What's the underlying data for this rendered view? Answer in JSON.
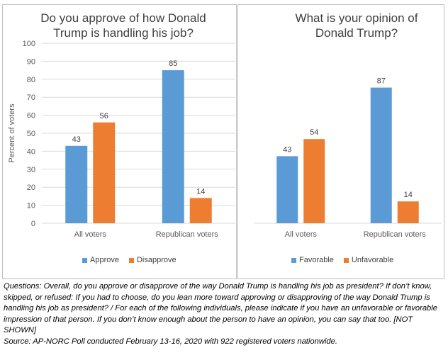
{
  "chart_data": [
    {
      "type": "bar",
      "title": "Do you approve of how Donald Trump is handling his job?",
      "ylabel": "Percent of voters",
      "ylim": [
        0,
        100
      ],
      "yticks": [
        0,
        10,
        20,
        30,
        40,
        50,
        60,
        70,
        80,
        90,
        100
      ],
      "categories": [
        "All voters",
        "Republican voters"
      ],
      "series": [
        {
          "name": "Approve",
          "values": [
            43,
            85
          ],
          "color": "#5b9bd5"
        },
        {
          "name": "Disapprove",
          "values": [
            56,
            14
          ],
          "color": "#ed7d31"
        }
      ],
      "legend": "bottom",
      "grid": true
    },
    {
      "type": "bar",
      "title": "What is your opinion of Donald Trump?",
      "ylim": [
        0,
        100
      ],
      "categories": [
        "All voters",
        "Republican voters"
      ],
      "series": [
        {
          "name": "Favorable",
          "values": [
            43,
            87
          ],
          "color": "#5b9bd5"
        },
        {
          "name": "Unfavorable",
          "values": [
            54,
            14
          ],
          "color": "#ed7d31"
        }
      ],
      "legend": "bottom",
      "grid": false
    }
  ],
  "notes": {
    "questions": "Questions:  Overall, do you approve or disapprove of the way Donald Trump is handling his job as president? If don’t know, skipped, or refused: If you had to choose, do you lean more toward approving or disapproving of the way Donald Trump is handling his job as president? / For each of the following individuals, please indicate if you have an unfavorable or favorable impression of that person. If you don’t know enough about the person to have an opinion, you can say that too. [NOT SHOWN]",
    "source": "Source: AP-NORC Poll conducted February 13-16, 2020 with 922 registered voters nationwide."
  }
}
